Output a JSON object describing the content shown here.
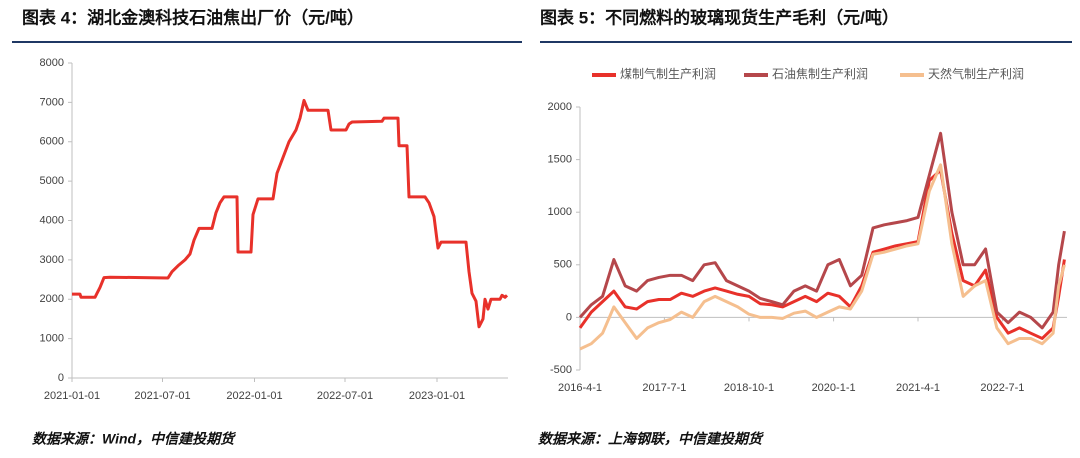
{
  "chart_data": [
    {
      "type": "line",
      "title": "图表 4：湖北金澳科技石油焦出厂价（元/吨）",
      "source": "数据来源：Wind，中信建投期货",
      "color": "#e8312a",
      "grid": false,
      "x": [
        "2021-01-01",
        "2021-01-17",
        "2021-01-19",
        "2021-02-16",
        "2021-02-20",
        "2021-02-26",
        "2021-03-06",
        "2021-03-18",
        "2021-07-12",
        "2021-07-20",
        "2021-08-01",
        "2021-08-15",
        "2021-08-25",
        "2021-09-02",
        "2021-09-12",
        "2021-10-08",
        "2021-10-16",
        "2021-10-24",
        "2021-11-01",
        "2021-11-27",
        "2021-11-29",
        "2021-12-25",
        "2021-12-29",
        "2022-01-08",
        "2022-02-07",
        "2022-02-15",
        "2022-02-27",
        "2022-03-11",
        "2022-03-25",
        "2022-04-02",
        "2022-04-10",
        "2022-04-18",
        "2022-05-28",
        "2022-06-03",
        "2022-07-03",
        "2022-07-09",
        "2022-07-15",
        "2022-09-13",
        "2022-09-17",
        "2022-10-15",
        "2022-10-17",
        "2022-11-02",
        "2022-11-06",
        "2022-12-08",
        "2022-12-16",
        "2022-12-26",
        "2023-01-03",
        "2023-01-09",
        "2023-02-28",
        "2023-03-06",
        "2023-03-12",
        "2023-03-20",
        "2023-03-26",
        "2023-04-03",
        "2023-04-07",
        "2023-04-13",
        "2023-04-19",
        "2023-05-07",
        "2023-05-11",
        "2023-05-17",
        "2023-05-21"
      ],
      "values": [
        2130,
        2130,
        2050,
        2050,
        2150,
        2300,
        2550,
        2560,
        2540,
        2700,
        2850,
        3000,
        3150,
        3500,
        3800,
        3800,
        4200,
        4450,
        4600,
        4600,
        3200,
        3200,
        4150,
        4550,
        4550,
        5200,
        5600,
        6000,
        6300,
        6600,
        7050,
        6800,
        6800,
        6300,
        6300,
        6450,
        6500,
        6520,
        6600,
        6600,
        5900,
        5900,
        4600,
        4600,
        4450,
        4100,
        3300,
        3450,
        3450,
        2700,
        2150,
        1950,
        1300,
        1500,
        2000,
        1750,
        2000,
        2000,
        2100,
        2050,
        2100
      ],
      "xlim": [
        "2021-01-01",
        "2023-05-23"
      ],
      "xticks": [
        "2021-01-01",
        "2021-07-01",
        "2022-01-01",
        "2022-07-01",
        "2023-01-01"
      ],
      "ylim": [
        0,
        8000
      ],
      "yticks": [
        0,
        1000,
        2000,
        3000,
        4000,
        5000,
        6000,
        7000,
        8000
      ]
    },
    {
      "type": "line",
      "title": "图表 5：不同燃料的玻璃现货生产毛利（元/吨）",
      "source": "数据来源：上海钢联，中信建投期货",
      "grid": false,
      "legend": "top",
      "x": [
        "2016-04-01",
        "2016-06-01",
        "2016-08-01",
        "2016-10-01",
        "2016-12-01",
        "2017-02-01",
        "2017-04-01",
        "2017-06-01",
        "2017-08-01",
        "2017-10-01",
        "2017-12-01",
        "2018-02-01",
        "2018-04-01",
        "2018-06-01",
        "2018-08-01",
        "2018-10-01",
        "2018-12-01",
        "2019-02-01",
        "2019-04-01",
        "2019-06-01",
        "2019-08-01",
        "2019-10-01",
        "2019-12-01",
        "2020-02-01",
        "2020-04-01",
        "2020-06-01",
        "2020-08-01",
        "2020-10-01",
        "2020-12-01",
        "2021-02-01",
        "2021-04-01",
        "2021-06-01",
        "2021-08-01",
        "2021-10-01",
        "2021-12-01",
        "2022-02-01",
        "2022-04-01",
        "2022-06-01",
        "2022-08-01",
        "2022-10-01",
        "2022-12-01",
        "2023-02-01",
        "2023-04-01",
        "2023-05-01",
        "2023-06-01"
      ],
      "series": [
        {
          "name": "煤制气制生产利润",
          "color": "#e8312a",
          "values": [
            -100,
            50,
            150,
            250,
            100,
            80,
            150,
            170,
            170,
            230,
            200,
            250,
            280,
            250,
            220,
            200,
            130,
            120,
            100,
            150,
            200,
            150,
            230,
            200,
            100,
            300,
            620,
            650,
            680,
            700,
            720,
            1300,
            1400,
            800,
            350,
            300,
            450,
            0,
            -150,
            -100,
            -150,
            -200,
            -100,
            200,
            550
          ]
        },
        {
          "name": "石油焦制生产利润",
          "color": "#b5474b",
          "values": [
            0,
            120,
            200,
            550,
            300,
            250,
            350,
            380,
            400,
            400,
            350,
            500,
            520,
            350,
            300,
            250,
            180,
            150,
            120,
            250,
            300,
            250,
            500,
            550,
            300,
            400,
            850,
            880,
            900,
            920,
            950,
            1350,
            1750,
            1000,
            500,
            500,
            650,
            50,
            -50,
            50,
            0,
            -100,
            50,
            500,
            820
          ]
        },
        {
          "name": "天然气制生产利润",
          "color": "#f5bf8f",
          "values": [
            -300,
            -250,
            -150,
            100,
            -50,
            -200,
            -100,
            -50,
            -20,
            50,
            0,
            150,
            200,
            150,
            100,
            30,
            0,
            0,
            -10,
            40,
            60,
            0,
            50,
            100,
            80,
            250,
            600,
            620,
            650,
            680,
            700,
            1200,
            1450,
            700,
            200,
            300,
            350,
            -100,
            -250,
            -200,
            -200,
            -250,
            -150,
            300,
            500
          ]
        }
      ],
      "xlim": [
        "2016-04-01",
        "2023-06-15"
      ],
      "xticks": [
        {
          "value": "2016-04-01",
          "label": "2016-4-1"
        },
        {
          "value": "2017-07-01",
          "label": "2017-7-1"
        },
        {
          "value": "2018-10-01",
          "label": "2018-10-1"
        },
        {
          "value": "2020-01-01",
          "label": "2020-1-1"
        },
        {
          "value": "2021-04-01",
          "label": "2021-4-1"
        },
        {
          "value": "2022-07-01",
          "label": "2022-7-1"
        }
      ],
      "ylim": [
        -500,
        2000
      ],
      "yticks": [
        -500,
        0,
        500,
        1000,
        1500,
        2000
      ]
    }
  ]
}
